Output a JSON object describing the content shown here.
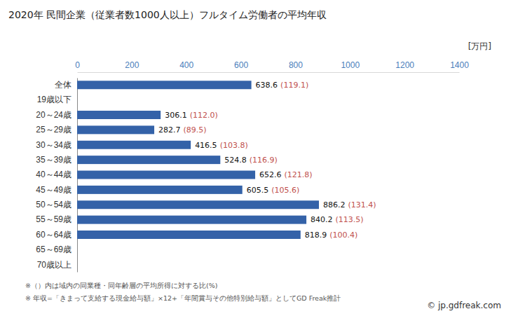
{
  "chart_data": {
    "type": "bar",
    "orientation": "horizontal",
    "title": "2020年 民間企業（従業者数1000人以上）フルタイム労働者の平均年収",
    "unit_label": "[万円]",
    "categories": [
      "全体",
      "19歳以下",
      "20～24歳",
      "25～29歳",
      "30～34歳",
      "35～39歳",
      "40～44歳",
      "45～49歳",
      "50～54歳",
      "55～59歳",
      "60～64歳",
      "65～69歳",
      "70歳以上"
    ],
    "values": [
      638.6,
      null,
      306.1,
      282.7,
      416.5,
      524.8,
      652.6,
      605.5,
      886.2,
      840.2,
      818.9,
      null,
      null
    ],
    "ratios": [
      119.1,
      null,
      112.0,
      89.5,
      103.8,
      116.9,
      121.8,
      105.6,
      131.4,
      113.5,
      100.4,
      null,
      null
    ],
    "ratio_labels": [
      "(119.1)",
      null,
      "(112.0)",
      "(89.5)",
      "(103.8)",
      "(116.9)",
      "(121.8)",
      "(105.6)",
      "(131.4)",
      "(113.5)",
      "(100.4)",
      null,
      null
    ],
    "xlim": [
      0,
      1400
    ],
    "xticks": [
      0,
      200,
      400,
      600,
      800,
      1000,
      1200,
      1400
    ],
    "color": "#3462a8",
    "data_labels": true,
    "grid": false,
    "notes": [
      "※（）内は域内の同業種・同年齢層の平均所得に対する比(%)",
      "※ 年収=「きまって支給する現金給与額」×12+「年間賞与その他特別給与額」としてGD Freak推計"
    ],
    "credit": "© jp.gdfreak.com"
  }
}
